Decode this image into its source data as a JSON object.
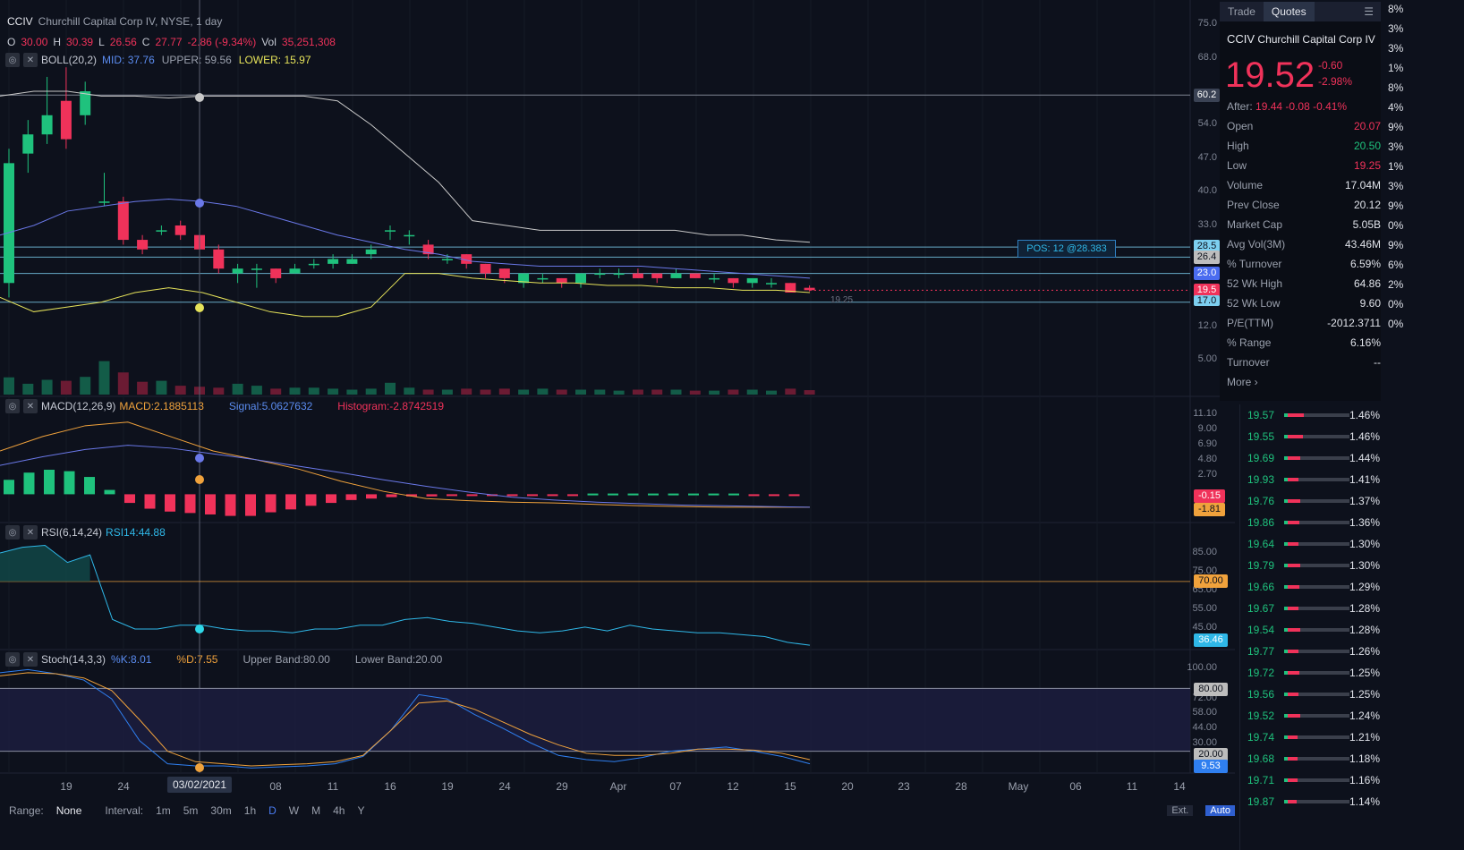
{
  "header": {
    "symbol": "CCIV",
    "name": "Churchill Capital Corp IV, NYSE, 1 day",
    "o_label": "O",
    "open": "30.00",
    "h_label": "H",
    "high": "30.39",
    "l_label": "L",
    "low": "26.56",
    "c_label": "C",
    "close": "27.77",
    "change": "-2.86 (-9.34%)",
    "vol_label": "Vol",
    "volume": "35,251,308",
    "boll_label": "BOLL(20,2)",
    "boll_mid": "MID: 37.76",
    "boll_upper": "UPPER: 59.56",
    "boll_lower": "LOWER: 15.97"
  },
  "price_axis": [
    "75.0",
    "68.0",
    "60.2",
    "54.0",
    "47.0",
    "40.0",
    "33.0",
    "28.5",
    "26.4",
    "23.0",
    "19.5",
    "17.0",
    "12.0",
    "5.00"
  ],
  "price_tags": {
    "upper": "60.2",
    "t1": "28.5",
    "t2": "26.4",
    "t3": "23.0",
    "t4": "19.5",
    "t5": "17.0"
  },
  "position_label": "POS: 12 @28.383",
  "low_marker": "19.25",
  "macd": {
    "label": "MACD(12,26,9)",
    "macd": "MACD:2.1885113",
    "signal": "Signal:5.0627632",
    "histogram": "Histogram:-2.8742519",
    "axis": [
      "11.10",
      "9.00",
      "6.90",
      "4.80",
      "2.70"
    ],
    "tag_hist": "-0.15",
    "tag_macd": "-1.81"
  },
  "rsi": {
    "label": "RSI(6,14,24)",
    "value_label": "RSI14:44.88",
    "axis": [
      "85.00",
      "75.00",
      "65.00",
      "55.00",
      "45.00"
    ],
    "tag_70": "70.00",
    "tag_now": "36.46"
  },
  "stoch": {
    "label": "Stoch(14,3,3)",
    "k": "%K:8.01",
    "d": "%D:7.55",
    "upper": "Upper Band:80.00",
    "lower": "Lower Band:20.00",
    "axis": [
      "100.00",
      "72.00",
      "58.00",
      "44.00",
      "30.00"
    ],
    "tag_80": "80.00",
    "tag_20": "20.00",
    "tag_now": "9.53"
  },
  "x_axis": [
    "19",
    "24",
    "03/02/2021",
    "08",
    "11",
    "16",
    "19",
    "24",
    "29",
    "Apr",
    "07",
    "12",
    "15",
    "20",
    "23",
    "28",
    "May",
    "06",
    "11",
    "14"
  ],
  "bottom_bar": {
    "range_label": "Range:",
    "range_value": "None",
    "interval_label": "Interval:",
    "intervals": [
      "1m",
      "5m",
      "30m",
      "1h",
      "D",
      "W",
      "M",
      "4h",
      "Y"
    ],
    "ext": "Ext.",
    "auto": "Auto"
  },
  "panel": {
    "tab_trade": "Trade",
    "tab_quotes": "Quotes",
    "symbol": "CCIV",
    "name": "Churchill Capital Corp IV",
    "price": "19.52",
    "change": "-0.60",
    "change_pct": "-2.98%",
    "after": "After:",
    "after_values": "19.44 -0.08 -0.41%",
    "rows": [
      {
        "k": "Open",
        "v": "20.07"
      },
      {
        "k": "High",
        "v": "20.50"
      },
      {
        "k": "Low",
        "v": "19.25"
      },
      {
        "k": "Volume",
        "v": "17.04M"
      },
      {
        "k": "Prev Close",
        "v": "20.12"
      },
      {
        "k": "Market Cap",
        "v": "5.05B"
      },
      {
        "k": "Avg Vol(3M)",
        "v": "43.46M"
      },
      {
        "k": "% Turnover",
        "v": "6.59%"
      },
      {
        "k": "52 Wk High",
        "v": "64.86"
      },
      {
        "k": "52 Wk Low",
        "v": "9.60"
      },
      {
        "k": "P/E(TTM)",
        "v": "-2012.3711"
      },
      {
        "k": "% Range",
        "v": "6.16%"
      },
      {
        "k": "Turnover",
        "v": "--"
      }
    ],
    "more": "More ›"
  },
  "edge_pcts": [
    "8%",
    "3%",
    "3%",
    "1%",
    "8%",
    "4%",
    "9%",
    "3%",
    "1%",
    "3%",
    "9%",
    "0%",
    "9%",
    "6%",
    "2%",
    "0%",
    "0%"
  ],
  "book": [
    {
      "p": "19.57",
      "pct": "1.46%",
      "r": 0.3
    },
    {
      "p": "19.55",
      "pct": "1.46%",
      "r": 0.28
    },
    {
      "p": "19.69",
      "pct": "1.44%",
      "r": 0.25
    },
    {
      "p": "19.93",
      "pct": "1.41%",
      "r": 0.22
    },
    {
      "p": "19.76",
      "pct": "1.37%",
      "r": 0.24
    },
    {
      "p": "19.86",
      "pct": "1.36%",
      "r": 0.23
    },
    {
      "p": "19.64",
      "pct": "1.30%",
      "r": 0.22
    },
    {
      "p": "19.79",
      "pct": "1.30%",
      "r": 0.24
    },
    {
      "p": "19.66",
      "pct": "1.29%",
      "r": 0.23
    },
    {
      "p": "19.67",
      "pct": "1.28%",
      "r": 0.22
    },
    {
      "p": "19.54",
      "pct": "1.28%",
      "r": 0.24
    },
    {
      "p": "19.77",
      "pct": "1.26%",
      "r": 0.22
    },
    {
      "p": "19.72",
      "pct": "1.25%",
      "r": 0.23
    },
    {
      "p": "19.56",
      "pct": "1.25%",
      "r": 0.22
    },
    {
      "p": "19.52",
      "pct": "1.24%",
      "r": 0.24
    },
    {
      "p": "19.74",
      "pct": "1.21%",
      "r": 0.21
    },
    {
      "p": "19.68",
      "pct": "1.18%",
      "r": 0.2
    },
    {
      "p": "19.71",
      "pct": "1.16%",
      "r": 0.21
    },
    {
      "p": "19.87",
      "pct": "1.14%",
      "r": 0.19
    }
  ],
  "colors": {
    "up": "#1fc27d",
    "down": "#f0325a",
    "boll_upper": "#c9c9c9",
    "boll_mid": "#6a78e8",
    "boll_lower": "#e6e35a",
    "background": "#0d111c"
  },
  "chart_data": {
    "type": "candlestick",
    "candles": [
      {
        "o": 21,
        "c": 46,
        "h": 49,
        "l": 18
      },
      {
        "o": 48,
        "c": 52,
        "h": 55,
        "l": 44
      },
      {
        "o": 52,
        "c": 56,
        "h": 64,
        "l": 50
      },
      {
        "o": 59,
        "c": 51,
        "h": 66,
        "l": 49
      },
      {
        "o": 56,
        "c": 61,
        "h": 63,
        "l": 54
      },
      {
        "o": 38,
        "c": 38,
        "h": 44,
        "l": 37
      },
      {
        "o": 38,
        "c": 30,
        "h": 39,
        "l": 29
      },
      {
        "o": 30,
        "c": 28,
        "h": 31,
        "l": 27
      },
      {
        "o": 32,
        "c": 32,
        "h": 33,
        "l": 31
      },
      {
        "o": 33,
        "c": 31,
        "h": 34,
        "l": 30
      },
      {
        "o": 31,
        "c": 28,
        "h": 32,
        "l": 27
      },
      {
        "o": 28,
        "c": 24,
        "h": 29,
        "l": 23
      },
      {
        "o": 23,
        "c": 24,
        "h": 25,
        "l": 21
      },
      {
        "o": 24,
        "c": 24,
        "h": 25,
        "l": 20
      },
      {
        "o": 24,
        "c": 22,
        "h": 24,
        "l": 21
      },
      {
        "o": 23,
        "c": 24,
        "h": 25,
        "l": 23
      },
      {
        "o": 25,
        "c": 25,
        "h": 26,
        "l": 24
      },
      {
        "o": 25,
        "c": 26,
        "h": 27,
        "l": 24
      },
      {
        "o": 25,
        "c": 26,
        "h": 27,
        "l": 25
      },
      {
        "o": 27,
        "c": 28,
        "h": 29,
        "l": 26
      },
      {
        "o": 32,
        "c": 32,
        "h": 33,
        "l": 30
      },
      {
        "o": 31,
        "c": 31,
        "h": 32,
        "l": 29
      },
      {
        "o": 29,
        "c": 27,
        "h": 30,
        "l": 26
      },
      {
        "o": 26,
        "c": 26,
        "h": 27,
        "l": 25
      },
      {
        "o": 27,
        "c": 25,
        "h": 27,
        "l": 24
      },
      {
        "o": 25,
        "c": 23,
        "h": 25,
        "l": 22
      },
      {
        "o": 24,
        "c": 22,
        "h": 24,
        "l": 21
      },
      {
        "o": 21,
        "c": 23,
        "h": 23,
        "l": 20
      },
      {
        "o": 22,
        "c": 22,
        "h": 23,
        "l": 21
      },
      {
        "o": 22,
        "c": 21,
        "h": 22,
        "l": 20
      },
      {
        "o": 21,
        "c": 23,
        "h": 23,
        "l": 20
      },
      {
        "o": 23,
        "c": 23,
        "h": 24,
        "l": 22
      },
      {
        "o": 23,
        "c": 23,
        "h": 24,
        "l": 22
      },
      {
        "o": 23,
        "c": 22,
        "h": 24,
        "l": 22
      },
      {
        "o": 23,
        "c": 22,
        "h": 23,
        "l": 21
      },
      {
        "o": 22,
        "c": 23,
        "h": 24,
        "l": 22
      },
      {
        "o": 23,
        "c": 22,
        "h": 23,
        "l": 22
      },
      {
        "o": 22,
        "c": 22,
        "h": 23,
        "l": 21
      },
      {
        "o": 22,
        "c": 21,
        "h": 22,
        "l": 20
      },
      {
        "o": 21,
        "c": 22,
        "h": 22,
        "l": 20
      },
      {
        "o": 21,
        "c": 21,
        "h": 22,
        "l": 20
      },
      {
        "o": 21,
        "c": 19,
        "h": 21,
        "l": 19
      },
      {
        "o": 20,
        "c": 19.5,
        "h": 20.5,
        "l": 19.25
      }
    ],
    "volume": [
      35,
      22,
      30,
      28,
      36,
      68,
      45,
      26,
      28,
      18,
      16,
      14,
      22,
      18,
      12,
      14,
      14,
      12,
      10,
      12,
      24,
      14,
      10,
      10,
      12,
      10,
      12,
      10,
      12,
      10,
      10,
      10,
      8,
      10,
      10,
      10,
      8,
      8,
      10,
      10,
      8,
      12,
      9
    ],
    "boll_upper": [
      60,
      61,
      61,
      60,
      60,
      59.6,
      60,
      60,
      60,
      60,
      59,
      54,
      48,
      42,
      34,
      33,
      32,
      32,
      32,
      32,
      32,
      31,
      31,
      30,
      29.5
    ],
    "boll_mid": [
      31,
      33,
      36,
      37,
      38,
      38.5,
      38,
      37,
      35,
      33,
      31,
      29.5,
      28,
      27,
      25.5,
      25,
      24.5,
      24.5,
      24.5,
      24.5,
      24,
      23.5,
      23,
      22.5,
      22
    ],
    "boll_lower": [
      18,
      15,
      16,
      17,
      19,
      20,
      19,
      17,
      15,
      14,
      14,
      16,
      23,
      23,
      22,
      21.5,
      21,
      21,
      20.5,
      20.5,
      20,
      20,
      19.5,
      19.5,
      19
    ],
    "macd_line": [
      6,
      8,
      9.5,
      10,
      8,
      6,
      4.8,
      3.5,
      1.8,
      0.4,
      -0.6,
      -0.9,
      -1.1,
      -1.2,
      -1.4,
      -1.6,
      -1.7,
      -1.8,
      -1.8,
      -1.8
    ],
    "signal_line": [
      4,
      5.2,
      6.2,
      6.8,
      6.4,
      5.6,
      4.8,
      3.9,
      3,
      2,
      1.1,
      0.3,
      -0.4,
      -0.8,
      -1.1,
      -1.3,
      -1.5,
      -1.6,
      -1.7,
      -1.8
    ],
    "histogram": [
      2,
      3,
      3.4,
      3.2,
      2.4,
      0.6,
      -1.2,
      -2,
      -2.4,
      -2.6,
      -2.8,
      -3,
      -3,
      -2.5,
      -2.1,
      -1.6,
      -1.2,
      -0.8,
      -0.6,
      -0.4,
      -0.3,
      -0.3,
      -0.25,
      -0.2,
      -0.2,
      -0.2,
      -0.2,
      -0.15,
      -0.15,
      0.1,
      0.1,
      0.1,
      0.1,
      0.1,
      0.1,
      0.1,
      0.1,
      -0.1,
      -0.1,
      -0.15
    ],
    "rsi": [
      85,
      88,
      89,
      80,
      84,
      50,
      45,
      45,
      47,
      47,
      45,
      44,
      44,
      43,
      45,
      45,
      47,
      47,
      50,
      51,
      49,
      48,
      46,
      44,
      43,
      44,
      46,
      44,
      47,
      45,
      44,
      43,
      43,
      42,
      41,
      38,
      36.46
    ],
    "stoch_k": [
      95,
      98,
      94,
      88,
      70,
      30,
      8,
      6,
      6,
      4,
      5,
      6,
      8,
      15,
      40,
      74,
      70,
      55,
      42,
      28,
      16,
      12,
      10,
      14,
      20,
      22,
      24,
      20,
      15,
      8
    ],
    "stoch_d": [
      92,
      95,
      94,
      90,
      78,
      50,
      20,
      10,
      8,
      6,
      7,
      8,
      10,
      16,
      40,
      66,
      68,
      60,
      48,
      36,
      26,
      18,
      16,
      16,
      18,
      22,
      22,
      21,
      18,
      12
    ]
  }
}
